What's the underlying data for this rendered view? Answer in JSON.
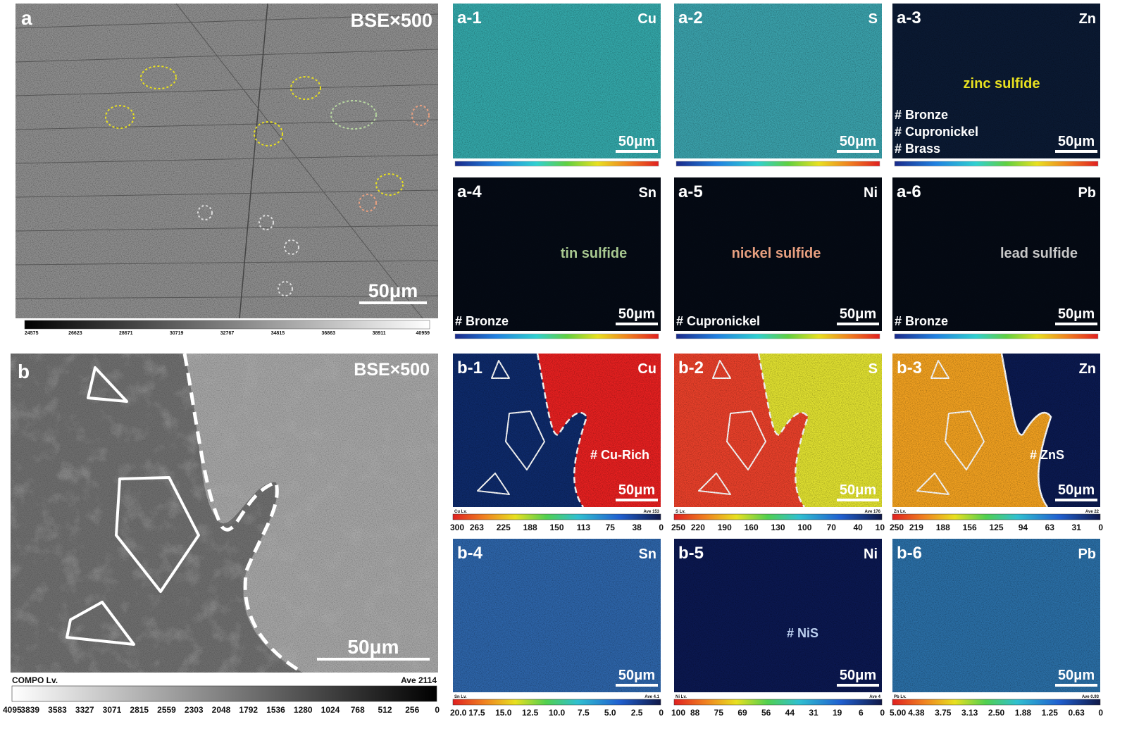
{
  "panel_a": {
    "label": "a",
    "mode": "BSE×500",
    "scale_bar": "50μm",
    "colorbar_ticks": [
      "24575",
      "26623",
      "28671",
      "30719",
      "32767",
      "34815",
      "36863",
      "38911",
      "40959"
    ]
  },
  "panel_b": {
    "label": "b",
    "mode": "BSE×500",
    "scale_bar": "50μm",
    "colorbar_title": "COMPO Lv.",
    "average": "Ave 2114",
    "colorbar_ticks": [
      "4095",
      "3839",
      "3583",
      "3327",
      "3071",
      "2815",
      "2559",
      "2303",
      "2048",
      "1792",
      "1536",
      "1280",
      "1024",
      "768",
      "512",
      "256",
      "0"
    ]
  },
  "maps": [
    {
      "label": "a-1",
      "element": "Cu",
      "scale_bar": "50μm",
      "annotations": []
    },
    {
      "label": "a-2",
      "element": "S",
      "scale_bar": "50μm",
      "annotations": []
    },
    {
      "label": "a-3",
      "element": "Zn",
      "scale_bar": "50μm",
      "annotations": [
        "zinc sulfide",
        "# Bronze",
        "# Cupronickel",
        "# Brass"
      ]
    },
    {
      "label": "a-4",
      "element": "Sn",
      "scale_bar": "50μm",
      "annotations": [
        "tin sulfide",
        "# Bronze"
      ]
    },
    {
      "label": "a-5",
      "element": "Ni",
      "scale_bar": "50μm",
      "annotations": [
        "nickel sulfide",
        "# Cupronickel"
      ]
    },
    {
      "label": "a-6",
      "element": "Pb",
      "scale_bar": "50μm",
      "annotations": [
        "lead sulfide",
        "# Bronze"
      ]
    },
    {
      "label": "b-1",
      "element": "Cu",
      "scale_bar": "50μm",
      "annotations": [
        "# Cu-Rich"
      ],
      "colorbar_title": "Cu Lv.",
      "average": "Ave 153",
      "colorbar_ticks": [
        "300",
        "263",
        "225",
        "188",
        "150",
        "113",
        "75",
        "38",
        "0"
      ]
    },
    {
      "label": "b-2",
      "element": "S",
      "scale_bar": "50μm",
      "annotations": [],
      "colorbar_title": "S Lv.",
      "average": "Ave 176",
      "colorbar_ticks": [
        "250",
        "220",
        "190",
        "160",
        "130",
        "100",
        "70",
        "40",
        "10"
      ]
    },
    {
      "label": "b-3",
      "element": "Zn",
      "scale_bar": "50μm",
      "annotations": [
        "# ZnS"
      ],
      "colorbar_title": "Zn Lv.",
      "average": "Ave 22",
      "colorbar_ticks": [
        "250",
        "219",
        "188",
        "156",
        "125",
        "94",
        "63",
        "31",
        "0"
      ]
    },
    {
      "label": "b-4",
      "element": "Sn",
      "scale_bar": "50μm",
      "annotations": [],
      "colorbar_title": "Sn Lv.",
      "average": "Ave 4.1",
      "colorbar_ticks": [
        "20.0",
        "17.5",
        "15.0",
        "12.5",
        "10.0",
        "7.5",
        "5.0",
        "2.5",
        "0"
      ]
    },
    {
      "label": "b-5",
      "element": "Ni",
      "scale_bar": "50μm",
      "annotations": [
        "# NiS"
      ],
      "colorbar_title": "Ni Lv.",
      "average": "Ave 4",
      "colorbar_ticks": [
        "100",
        "88",
        "75",
        "69",
        "56",
        "44",
        "31",
        "19",
        "6",
        "0"
      ]
    },
    {
      "label": "b-6",
      "element": "Pb",
      "scale_bar": "50μm",
      "annotations": [],
      "colorbar_title": "Pb Lv.",
      "average": "Ave 0.93",
      "colorbar_ticks": [
        "5.00",
        "4.38",
        "3.75",
        "3.13",
        "2.50",
        "1.88",
        "1.25",
        "0.63",
        "0"
      ]
    }
  ]
}
